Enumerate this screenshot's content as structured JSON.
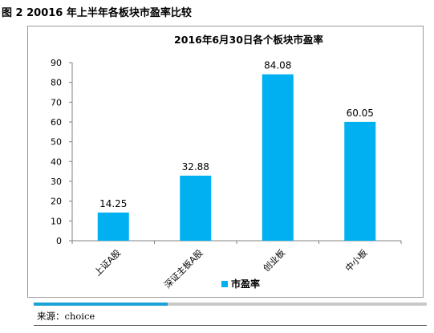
{
  "figure_title": "图 2 20016 年上半年各板块市盈率比较",
  "source_text": "来源：choice",
  "progress": {
    "fraction": 0.34,
    "fill_color": "#1ba3d8",
    "track_color": "#c8c8c8"
  },
  "chart_data": {
    "type": "bar",
    "title": "2016年6月30日各个板块市盈率",
    "categories": [
      "上证A股",
      "深证主板A股",
      "创业板",
      "中小板"
    ],
    "series": [
      {
        "name": "市盈率",
        "values": [
          14.25,
          32.88,
          84.08,
          60.05
        ],
        "labels": [
          "14.25",
          "32.88",
          "84.08",
          "60.05"
        ],
        "color": "#00b0f0"
      }
    ],
    "ylim": [
      0,
      90
    ],
    "yticks": [
      0,
      10,
      20,
      30,
      40,
      50,
      60,
      70,
      80,
      90
    ],
    "xlabel": "",
    "ylabel": "",
    "grid": false,
    "legend": "bottom-center"
  }
}
